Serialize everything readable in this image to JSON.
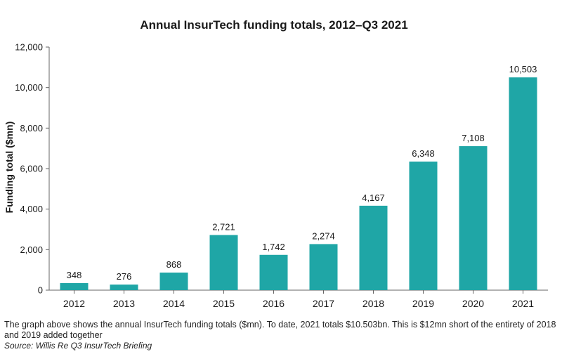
{
  "chart_data": {
    "type": "bar",
    "title": "Annual InsurTech funding totals, 2012–Q3 2021",
    "xlabel": "",
    "ylabel": "Funding total ($mn)",
    "categories": [
      "2012",
      "2013",
      "2014",
      "2015",
      "2016",
      "2017",
      "2018",
      "2019",
      "2020",
      "2021"
    ],
    "values": [
      348,
      276,
      868,
      2721,
      1742,
      2274,
      4167,
      6348,
      7108,
      10503
    ],
    "data_labels": [
      "348",
      "276",
      "868",
      "2,721",
      "1,742",
      "2,274",
      "4,167",
      "6,348",
      "7,108",
      "10,503"
    ],
    "ylim": [
      0,
      12000
    ],
    "yticks": [
      0,
      2000,
      4000,
      6000,
      8000,
      10000,
      12000
    ],
    "ytick_labels": [
      "0",
      "2,000",
      "4,000",
      "6,000",
      "8,000",
      "10,000",
      "12,000"
    ],
    "grid": false,
    "bar_color": "#1fa6a6"
  },
  "caption": "The graph above shows the annual InsurTech funding totals ($mn). To date, 2021 totals $10.503bn. This is $12mn short of the entirety of 2018 and 2019 added together",
  "source": "Source: Willis Re Q3 InsurTech Briefing"
}
